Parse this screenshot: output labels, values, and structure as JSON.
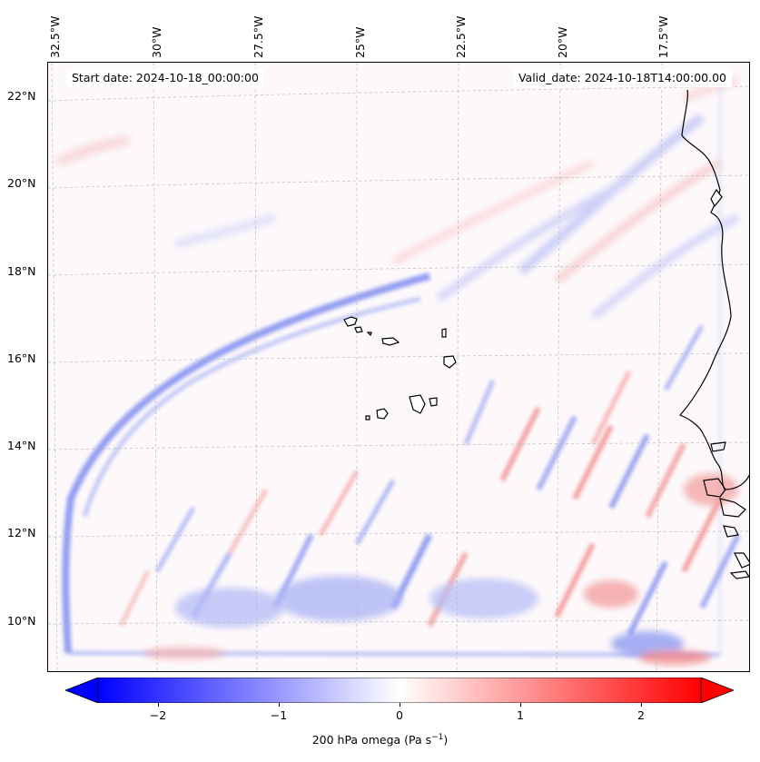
{
  "map": {
    "start_date": "Start date: 2024-10-18_00:00:00",
    "valid_date": "Valid_date: 2024-10-18T14:00:00.00",
    "lon_labels": [
      "32.5°W",
      "30°W",
      "27.5°W",
      "25°W",
      "22.5°W",
      "20°W",
      "17.5°W"
    ],
    "lat_labels": [
      "22°N",
      "20°N",
      "18°N",
      "16°N",
      "14°N",
      "12°N",
      "10°N"
    ],
    "extent": {
      "lon": [
        -33.0,
        -15.5
      ],
      "lat": [
        8.8,
        22.8
      ]
    },
    "field": "200 hPa omega",
    "gridlines": true
  },
  "colorbar": {
    "label": "200 hPa omega (Pa s",
    "label_exp": "−1",
    "label_close": ")",
    "ticks": [
      "−2",
      "−1",
      "0",
      "1",
      "2"
    ],
    "range": [
      -2.5,
      2.5
    ],
    "extend": "both",
    "cmap": "bwr",
    "colors": {
      "low": "#0000ff",
      "mid": "#ffffff",
      "high": "#ff0000"
    }
  }
}
